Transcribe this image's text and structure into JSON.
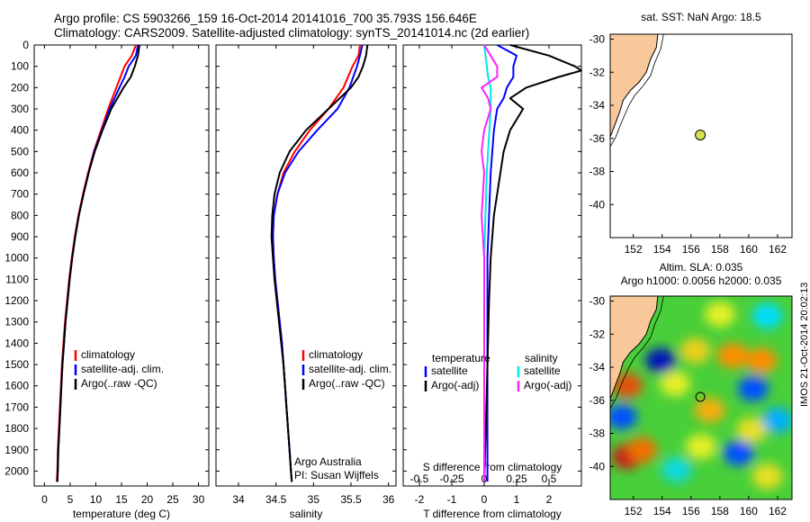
{
  "header": {
    "line1": "Argo profile: CS 5903266_159 16-Oct-2014 20141016_700 35.793S 156.646E",
    "line2": "Climatology: CARS2009. Satellite-adjusted climatology: synTS_20141014.nc (2d earlier)"
  },
  "credit": "IMOS 21-Oct-2014 20:02:13",
  "colors": {
    "climatology": "#ff0000",
    "satellite": "#0000ff",
    "argo": "#000000",
    "sal_satellite": "#00e5e5",
    "sal_argo": "#ff22ff",
    "land": "#f8c89a",
    "float": "#d6e04a"
  },
  "chart_data": [
    {
      "type": "line",
      "id": "temperature",
      "xlabel": "temperature (deg C)",
      "xlim": [
        -2,
        32
      ],
      "xticks": [
        0,
        5,
        10,
        15,
        20,
        25,
        30
      ],
      "ylim": [
        2070,
        0
      ],
      "yticks": [
        0,
        100,
        200,
        300,
        400,
        500,
        600,
        700,
        800,
        900,
        1000,
        1100,
        1200,
        1300,
        1400,
        1500,
        1600,
        1700,
        1800,
        1900,
        2000
      ],
      "legend": [
        "climatology",
        "satellite-adj. clim.",
        "Argo(..raw -QC)"
      ],
      "series": [
        {
          "name": "climatology",
          "depth": [
            0,
            50,
            100,
            150,
            200,
            300,
            400,
            500,
            600,
            700,
            800,
            900,
            1000,
            1100,
            1200,
            1300,
            1400,
            1500,
            1600,
            1700,
            1800,
            1900,
            2000,
            2050
          ],
          "values": [
            17.8,
            17.0,
            15.6,
            14.8,
            14.0,
            12.4,
            11.0,
            9.6,
            8.5,
            7.5,
            6.6,
            5.9,
            5.3,
            4.8,
            4.4,
            4.0,
            3.7,
            3.4,
            3.2,
            3.0,
            2.8,
            2.6,
            2.5,
            2.4
          ]
        },
        {
          "name": "satellite-adj. clim.",
          "depth": [
            0,
            50,
            100,
            150,
            200,
            300,
            400,
            500,
            600,
            700,
            800,
            900,
            1000,
            1100,
            1200,
            1300,
            1400,
            1500,
            1600,
            1700,
            1800,
            1900,
            2000,
            2050
          ],
          "values": [
            18.2,
            17.8,
            16.4,
            15.6,
            14.6,
            12.7,
            11.2,
            9.7,
            8.6,
            7.6,
            6.7,
            6.0,
            5.4,
            4.9,
            4.5,
            4.1,
            3.8,
            3.5,
            3.3,
            3.1,
            2.9,
            2.7,
            2.6,
            2.5
          ]
        },
        {
          "name": "Argo(..raw -QC)",
          "depth": [
            0,
            50,
            100,
            150,
            200,
            300,
            400,
            500,
            600,
            700,
            800,
            900,
            1000,
            1100,
            1200,
            1300,
            1400,
            1500,
            1600,
            1700,
            1800,
            1900,
            2000,
            2050
          ],
          "values": [
            18.5,
            18.2,
            17.6,
            16.8,
            15.4,
            13.0,
            11.3,
            9.8,
            8.6,
            7.6,
            6.7,
            6.0,
            5.4,
            4.9,
            4.5,
            4.1,
            3.8,
            3.5,
            3.3,
            3.1,
            2.9,
            2.7,
            2.6,
            2.5
          ]
        }
      ]
    },
    {
      "type": "line",
      "id": "salinity",
      "xlabel": "salinity",
      "xlim": [
        33.7,
        36.1
      ],
      "xticks": [
        34,
        34.5,
        35,
        35.5,
        36
      ],
      "ylim": [
        2070,
        0
      ],
      "legend": [
        "climatology",
        "satellite-adj. clim.",
        "Argo(..raw -QC)"
      ],
      "annotation": [
        "Argo Australia",
        "PI: Susan Wijffels"
      ],
      "series": [
        {
          "name": "climatology",
          "depth": [
            0,
            50,
            100,
            150,
            200,
            300,
            400,
            500,
            600,
            700,
            800,
            900,
            1000,
            1100,
            1200,
            1300,
            1400,
            1500,
            1600,
            1700,
            1800,
            1900,
            2000,
            2050
          ],
          "values": [
            35.62,
            35.6,
            35.52,
            35.46,
            35.4,
            35.2,
            34.95,
            34.75,
            34.6,
            34.52,
            34.47,
            34.46,
            34.47,
            34.49,
            34.52,
            34.55,
            34.58,
            34.6,
            34.62,
            34.64,
            34.66,
            34.68,
            34.7,
            34.71
          ]
        },
        {
          "name": "satellite-adj. clim.",
          "depth": [
            0,
            50,
            100,
            150,
            200,
            300,
            400,
            500,
            600,
            700,
            800,
            900,
            1000,
            1100,
            1200,
            1300,
            1400,
            1500,
            1600,
            1700,
            1800,
            1900,
            2000,
            2050
          ],
          "values": [
            35.65,
            35.62,
            35.58,
            35.53,
            35.48,
            35.32,
            35.05,
            34.8,
            34.62,
            34.52,
            34.47,
            34.46,
            34.47,
            34.49,
            34.52,
            34.55,
            34.58,
            34.6,
            34.62,
            34.64,
            34.66,
            34.68,
            34.7,
            34.71
          ]
        },
        {
          "name": "Argo(..raw -QC)",
          "depth": [
            0,
            50,
            100,
            150,
            200,
            300,
            400,
            500,
            600,
            700,
            800,
            900,
            1000,
            1100,
            1200,
            1300,
            1400,
            1500,
            1600,
            1700,
            1800,
            1900,
            2000,
            2050
          ],
          "values": [
            35.72,
            35.7,
            35.66,
            35.6,
            35.5,
            35.2,
            34.9,
            34.68,
            34.55,
            34.48,
            34.45,
            34.44,
            34.46,
            34.48,
            34.51,
            34.54,
            34.57,
            34.6,
            34.62,
            34.64,
            34.66,
            34.68,
            34.7,
            34.71
          ]
        }
      ]
    },
    {
      "type": "line",
      "id": "differences",
      "xlabel": "T difference from climatology",
      "xlim": [
        -2.5,
        3
      ],
      "xticks": [
        -2,
        -1,
        0,
        1,
        2
      ],
      "slabel": "S difference from climatology",
      "sticks": [
        "-0.5",
        "-0.25",
        "0",
        "0.25",
        "0.5"
      ],
      "sxlim": [
        -0.625,
        0.75
      ],
      "ylim": [
        2070,
        0
      ],
      "legend_heads": [
        "temperature",
        "salinity"
      ],
      "legend": [
        "satellite",
        "Argo(-adj)",
        "satellite",
        "Argo(-adj)"
      ],
      "series": [
        {
          "name": "T satellite",
          "axis": "T",
          "depth": [
            0,
            50,
            100,
            150,
            200,
            250,
            300,
            400,
            500,
            600,
            800,
            1000,
            1200,
            1500,
            1800,
            2050
          ],
          "values": [
            0.4,
            1.0,
            0.9,
            0.9,
            0.7,
            0.6,
            0.4,
            0.3,
            0.25,
            0.2,
            0.15,
            0.1,
            0.1,
            0.1,
            0.1,
            0.1
          ]
        },
        {
          "name": "T Argo(-adj)",
          "axis": "T",
          "depth": [
            0,
            50,
            100,
            120,
            150,
            200,
            250,
            300,
            400,
            500,
            600,
            800,
            1000,
            1200,
            1500,
            1800,
            2050
          ],
          "values": [
            0.8,
            2.0,
            2.8,
            3.0,
            2.3,
            1.3,
            0.8,
            1.2,
            0.8,
            0.6,
            0.5,
            0.3,
            0.2,
            0.15,
            0.1,
            0.05,
            0.0
          ]
        },
        {
          "name": "S satellite",
          "axis": "S",
          "depth": [
            0,
            50,
            100,
            150,
            200,
            300,
            400,
            500,
            600,
            800,
            1000,
            1200,
            1500,
            1800,
            2050
          ],
          "values": [
            0.0,
            0.01,
            0.02,
            0.03,
            0.05,
            0.05,
            0.04,
            0.03,
            0.02,
            0.01,
            0.0,
            0.0,
            0.0,
            0.0,
            0.0
          ]
        },
        {
          "name": "S Argo(-adj)",
          "axis": "S",
          "depth": [
            0,
            50,
            100,
            150,
            200,
            250,
            300,
            400,
            500,
            600,
            800,
            1000,
            1200,
            1500,
            1800,
            2050
          ],
          "values": [
            0.0,
            0.05,
            0.1,
            0.1,
            -0.02,
            0.03,
            0.05,
            0.0,
            -0.02,
            0.0,
            -0.02,
            0.0,
            0.0,
            0.0,
            0.0,
            0.0
          ]
        }
      ]
    },
    {
      "type": "scatter",
      "id": "sst_map",
      "title": "sat. SST: NaN Argo: 18.5",
      "xlim": [
        150.4,
        163
      ],
      "ylim": [
        -42,
        -29.7
      ],
      "xticks": [
        152,
        154,
        156,
        158,
        160,
        162
      ],
      "yticks": [
        -30,
        -32,
        -34,
        -36,
        -38,
        -40
      ],
      "float": {
        "lon": 156.646,
        "lat": -35.793
      }
    },
    {
      "type": "heatmap",
      "id": "sla_map",
      "title": [
        "Altim. SLA: 0.035",
        "Argo h1000: 0.0056 h2000: 0.035"
      ],
      "xlim": [
        150.4,
        163
      ],
      "ylim": [
        -42,
        -29.7
      ],
      "xticks": [
        152,
        154,
        156,
        158,
        160,
        162
      ],
      "yticks": [
        -30,
        -32,
        -34,
        -36,
        -38,
        -40
      ],
      "float": {
        "lon": 156.646,
        "lat": -35.793
      },
      "blobs": [
        {
          "lon": 153.9,
          "lat": -33.6,
          "v": -0.9
        },
        {
          "lon": 151.6,
          "lat": -35.1,
          "v": 0.8
        },
        {
          "lon": 151.6,
          "lat": -39.4,
          "v": 1.0
        },
        {
          "lon": 152.6,
          "lat": -39.0,
          "v": 0.7
        },
        {
          "lon": 151.2,
          "lat": -37.0,
          "v": -0.6
        },
        {
          "lon": 157.3,
          "lat": -36.6,
          "v": 0.5
        },
        {
          "lon": 158.9,
          "lat": -33.3,
          "v": 0.6
        },
        {
          "lon": 160.9,
          "lat": -33.6,
          "v": 0.6
        },
        {
          "lon": 156.3,
          "lat": -33.0,
          "v": 0.4
        },
        {
          "lon": 160.3,
          "lat": -35.3,
          "v": -0.6
        },
        {
          "lon": 159.3,
          "lat": -39.2,
          "v": -0.6
        },
        {
          "lon": 156.7,
          "lat": -38.8,
          "v": 0.3
        },
        {
          "lon": 160.2,
          "lat": -37.8,
          "v": 0.35
        },
        {
          "lon": 154.9,
          "lat": -35.0,
          "v": 0.3
        },
        {
          "lon": 158.0,
          "lat": -30.8,
          "v": 0.3
        },
        {
          "lon": 161.3,
          "lat": -30.9,
          "v": -0.3
        },
        {
          "lon": 161.3,
          "lat": -40.6,
          "v": 0.35
        },
        {
          "lon": 155.0,
          "lat": -40.2,
          "v": -0.25
        },
        {
          "lon": 162.0,
          "lat": -37.2,
          "v": -0.4
        }
      ]
    }
  ]
}
